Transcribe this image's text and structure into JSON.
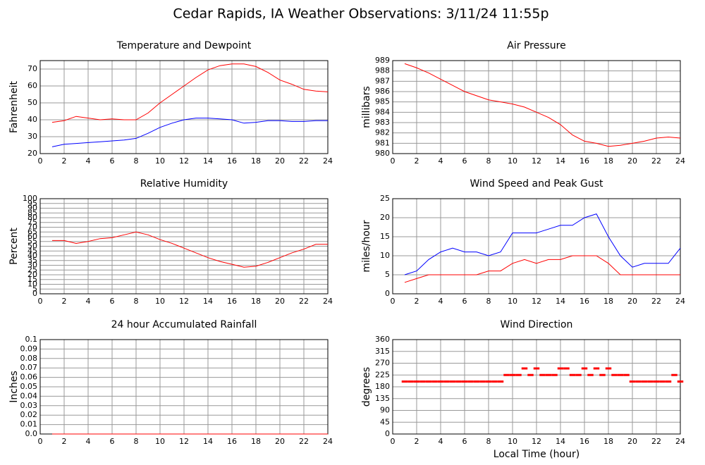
{
  "title": "Cedar Rapids, IA Weather Observations: 3/11/24 11:55p",
  "chart_data": [
    {
      "type": "line",
      "title": "Temperature and Dewpoint",
      "ylabel": "Fahrenheit",
      "x": [
        1,
        2,
        3,
        4,
        5,
        6,
        7,
        8,
        9,
        10,
        11,
        12,
        13,
        14,
        15,
        16,
        17,
        18,
        19,
        20,
        21,
        22,
        23,
        24
      ],
      "series": [
        {
          "color": "#ff0000",
          "values": [
            38.5,
            39.5,
            42,
            41,
            40,
            40.5,
            40,
            40,
            44,
            50,
            55,
            60,
            65,
            69.5,
            72,
            73,
            73,
            71.5,
            68,
            63.5,
            61,
            58,
            57,
            56.5
          ]
        },
        {
          "color": "#0000ff",
          "values": [
            24,
            25.5,
            26,
            26.5,
            27,
            27.5,
            28,
            29,
            32,
            35.5,
            38,
            40,
            41,
            41,
            40.5,
            40,
            38,
            38.5,
            39.5,
            39.5,
            39,
            39,
            39.5,
            39.5
          ]
        }
      ],
      "xlim": [
        0,
        24
      ],
      "xticks": [
        0,
        2,
        4,
        6,
        8,
        10,
        12,
        14,
        16,
        18,
        20,
        22,
        24
      ],
      "ylim": [
        20,
        75
      ],
      "yticks": [
        20,
        30,
        40,
        50,
        60,
        70
      ],
      "grid": true
    },
    {
      "type": "line",
      "title": "Air Pressure",
      "ylabel": "millibars",
      "x": [
        1,
        2,
        3,
        4,
        5,
        6,
        7,
        8,
        9,
        10,
        11,
        12,
        13,
        14,
        15,
        16,
        17,
        18,
        19,
        20,
        21,
        22,
        23,
        24
      ],
      "series": [
        {
          "color": "#ff0000",
          "values": [
            988.7,
            988.3,
            987.8,
            987.2,
            986.6,
            986.0,
            985.6,
            985.2,
            985.0,
            984.8,
            984.5,
            984.0,
            983.5,
            982.8,
            981.8,
            981.2,
            981.0,
            980.7,
            980.8,
            981.0,
            981.2,
            981.5,
            981.6,
            981.5
          ]
        }
      ],
      "xlim": [
        0,
        24
      ],
      "xticks": [
        0,
        2,
        4,
        6,
        8,
        10,
        12,
        14,
        16,
        18,
        20,
        22,
        24
      ],
      "ylim": [
        980,
        989
      ],
      "yticks": [
        980,
        981,
        982,
        983,
        984,
        985,
        986,
        987,
        988,
        989
      ],
      "grid": true
    },
    {
      "type": "line",
      "title": "Relative Humidity",
      "ylabel": "Percent",
      "x": [
        1,
        2,
        3,
        4,
        5,
        6,
        7,
        8,
        9,
        10,
        11,
        12,
        13,
        14,
        15,
        16,
        17,
        18,
        19,
        20,
        21,
        22,
        23,
        24
      ],
      "series": [
        {
          "color": "#ff0000",
          "values": [
            56,
            56,
            53,
            55,
            58,
            59,
            62,
            65,
            62,
            57,
            53,
            48,
            43,
            38,
            34,
            31,
            28,
            29,
            33,
            38,
            43,
            47,
            52,
            52
          ]
        }
      ],
      "xlim": [
        0,
        24
      ],
      "xticks": [
        0,
        2,
        4,
        6,
        8,
        10,
        12,
        14,
        16,
        18,
        20,
        22,
        24
      ],
      "ylim": [
        0,
        100
      ],
      "yticks": [
        0,
        5,
        10,
        15,
        20,
        25,
        30,
        35,
        40,
        45,
        50,
        55,
        60,
        65,
        70,
        75,
        80,
        85,
        90,
        95,
        100
      ],
      "grid": true
    },
    {
      "type": "line",
      "title": "Wind Speed and Peak Gust",
      "ylabel": "miles/hour",
      "x": [
        1,
        2,
        3,
        4,
        5,
        6,
        7,
        8,
        9,
        10,
        11,
        12,
        13,
        14,
        15,
        16,
        17,
        18,
        19,
        20,
        21,
        22,
        23,
        24
      ],
      "series": [
        {
          "color": "#0000ff",
          "values": [
            5,
            6,
            9,
            11,
            12,
            11,
            11,
            10,
            11,
            16,
            16,
            16,
            17,
            18,
            18,
            20,
            21,
            15,
            10,
            7,
            8,
            8,
            8,
            12
          ]
        },
        {
          "color": "#ff0000",
          "values": [
            3,
            4,
            5,
            5,
            5,
            5,
            5,
            6,
            6,
            8,
            9,
            8,
            9,
            9,
            10,
            10,
            10,
            8,
            5,
            5,
            5,
            5,
            5,
            5
          ]
        }
      ],
      "xlim": [
        0,
        24
      ],
      "xticks": [
        0,
        2,
        4,
        6,
        8,
        10,
        12,
        14,
        16,
        18,
        20,
        22,
        24
      ],
      "ylim": [
        0,
        25
      ],
      "yticks": [
        0,
        5,
        10,
        15,
        20,
        25
      ],
      "grid": true
    },
    {
      "type": "line",
      "title": "24 hour Accumulated Rainfall",
      "ylabel": "Inches",
      "x": [
        1,
        2,
        3,
        4,
        5,
        6,
        7,
        8,
        9,
        10,
        11,
        12,
        13,
        14,
        15,
        16,
        17,
        18,
        19,
        20,
        21,
        22,
        23,
        24
      ],
      "series": [
        {
          "color": "#ff0000",
          "values": [
            0,
            0,
            0,
            0,
            0,
            0,
            0,
            0,
            0,
            0,
            0,
            0,
            0,
            0,
            0,
            0,
            0,
            0,
            0,
            0,
            0,
            0,
            0,
            0
          ]
        }
      ],
      "xlim": [
        0,
        24
      ],
      "xticks": [
        0,
        2,
        4,
        6,
        8,
        10,
        12,
        14,
        16,
        18,
        20,
        22,
        24
      ],
      "ylim": [
        0,
        0.1
      ],
      "yticks": [
        {
          "value": 0,
          "label": "0.0"
        },
        0.01,
        0.02,
        0.03,
        0.04,
        0.05,
        0.06,
        0.07,
        0.08,
        0.09,
        0.1
      ],
      "grid": true
    },
    {
      "type": "scatter",
      "title": "Wind Direction",
      "ylabel": "degrees",
      "xlabel": "Local Time (hour)",
      "x": [
        1,
        1.5,
        2,
        2.5,
        3,
        3.5,
        4,
        4.5,
        5,
        5.5,
        6,
        6.5,
        7,
        7.5,
        8,
        8.5,
        9,
        9.5,
        10,
        10.5,
        11,
        11.5,
        12,
        12.5,
        13,
        13.5,
        14,
        14.5,
        15,
        15.5,
        16,
        16.5,
        17,
        17.5,
        18,
        18.5,
        19,
        19.5,
        20,
        20.5,
        21,
        21.5,
        22,
        22.5,
        23,
        23.5,
        24
      ],
      "series": [
        {
          "color": "#ff0000",
          "values": [
            200,
            200,
            200,
            200,
            200,
            200,
            200,
            200,
            200,
            200,
            200,
            200,
            200,
            200,
            200,
            200,
            200,
            225,
            225,
            225,
            250,
            225,
            250,
            225,
            225,
            225,
            250,
            250,
            225,
            225,
            250,
            225,
            250,
            225,
            250,
            225,
            225,
            225,
            200,
            200,
            200,
            200,
            200,
            200,
            200,
            225,
            200
          ]
        }
      ],
      "xlim": [
        0,
        24
      ],
      "xticks": [
        0,
        2,
        4,
        6,
        8,
        10,
        12,
        14,
        16,
        18,
        20,
        22,
        24
      ],
      "ylim": [
        0,
        360
      ],
      "yticks": [
        0,
        45,
        90,
        135,
        180,
        225,
        270,
        315,
        360
      ],
      "grid": true
    }
  ]
}
